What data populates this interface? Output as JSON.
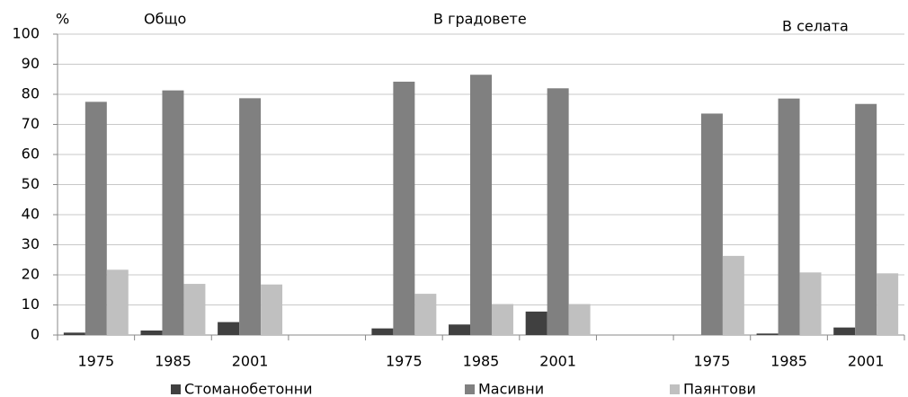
{
  "chart_data": {
    "type": "bar",
    "annotations": [
      "%",
      "Общо",
      "В градовете",
      "В селата"
    ],
    "categories": [
      "1975",
      "1985",
      "2001",
      null,
      "1975",
      "1985",
      "2001",
      null,
      "1975",
      "1985",
      "2001"
    ],
    "series": [
      {
        "name": "Стоманобетонни",
        "color": "#404040",
        "values": [
          0.8,
          1.5,
          4.3,
          null,
          2.2,
          3.5,
          7.8,
          null,
          0,
          0.5,
          2.5
        ]
      },
      {
        "name": "Масивни",
        "color": "#808080",
        "values": [
          77.5,
          81.3,
          78.7,
          null,
          84.2,
          86.5,
          82,
          null,
          73.6,
          78.6,
          76.8
        ]
      },
      {
        "name": "Паянтови",
        "color": "#c0c0c0",
        "values": [
          21.7,
          17,
          16.8,
          null,
          13.7,
          10.3,
          10.3,
          null,
          26.3,
          20.8,
          20.5
        ]
      }
    ],
    "ylim": [
      0,
      100
    ],
    "yticks": [
      0,
      10,
      20,
      30,
      40,
      50,
      60,
      70,
      80,
      90,
      100
    ],
    "grid": true,
    "legend": "bottom"
  }
}
